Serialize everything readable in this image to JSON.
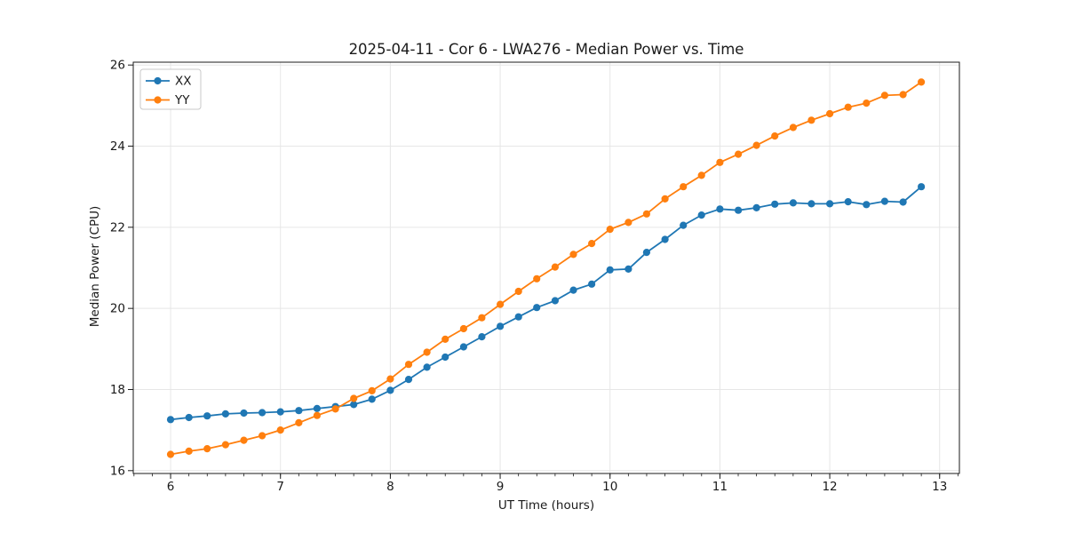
{
  "figure": {
    "background": "#ffffff"
  },
  "chart_data": {
    "type": "line",
    "title": "2025-04-11 - Cor 6 - LWA276 - Median Power vs. Time",
    "xlabel": "UT Time (hours)",
    "ylabel": "Median Power (CPU)",
    "x": [
      6.0,
      6.167,
      6.333,
      6.5,
      6.667,
      6.833,
      7.0,
      7.167,
      7.333,
      7.5,
      7.667,
      7.833,
      8.0,
      8.167,
      8.333,
      8.5,
      8.667,
      8.833,
      9.0,
      9.167,
      9.333,
      9.5,
      9.667,
      9.833,
      10.0,
      10.167,
      10.333,
      10.5,
      10.667,
      10.833,
      11.0,
      11.167,
      11.333,
      11.5,
      11.667,
      11.833,
      12.0,
      12.167,
      12.333,
      12.5,
      12.667,
      12.833
    ],
    "series": [
      {
        "name": "XX",
        "color": "#1f77b4",
        "values": [
          17.26,
          17.31,
          17.35,
          17.4,
          17.42,
          17.43,
          17.45,
          17.48,
          17.53,
          17.58,
          17.63,
          17.76,
          17.98,
          18.25,
          18.55,
          18.8,
          19.05,
          19.3,
          19.56,
          19.79,
          20.02,
          20.19,
          20.45,
          20.6,
          20.95,
          20.97,
          21.38,
          21.7,
          22.05,
          22.3,
          22.45,
          22.42,
          22.48,
          22.57,
          22.6,
          22.58,
          22.58,
          22.63,
          22.56,
          22.64,
          22.62,
          23.0
        ]
      },
      {
        "name": "YY",
        "color": "#ff7f0e",
        "values": [
          16.4,
          16.48,
          16.54,
          16.64,
          16.75,
          16.86,
          17.0,
          17.18,
          17.36,
          17.52,
          17.78,
          17.97,
          18.26,
          18.62,
          18.92,
          19.24,
          19.5,
          19.77,
          20.1,
          20.42,
          20.73,
          21.02,
          21.33,
          21.6,
          21.95,
          22.12,
          22.33,
          22.7,
          23.0,
          23.28,
          23.6,
          23.8,
          24.02,
          24.25,
          24.46,
          24.64,
          24.8,
          24.96,
          25.06,
          25.25,
          25.27,
          25.58
        ]
      }
    ],
    "xlim": [
      5.66,
      13.18
    ],
    "ylim": [
      15.93,
      26.07
    ],
    "xticks": [
      6,
      7,
      8,
      9,
      10,
      11,
      12,
      13
    ],
    "yticks": [
      16,
      18,
      20,
      22,
      24,
      26
    ],
    "x_minor_tick_step": 0.1666667,
    "grid": true,
    "grid_color": "#e6e6e6",
    "axis_color": "#1a1a1a",
    "text_color": "#1a1a1a",
    "legend_position": "upper-left",
    "marker": "circle"
  }
}
